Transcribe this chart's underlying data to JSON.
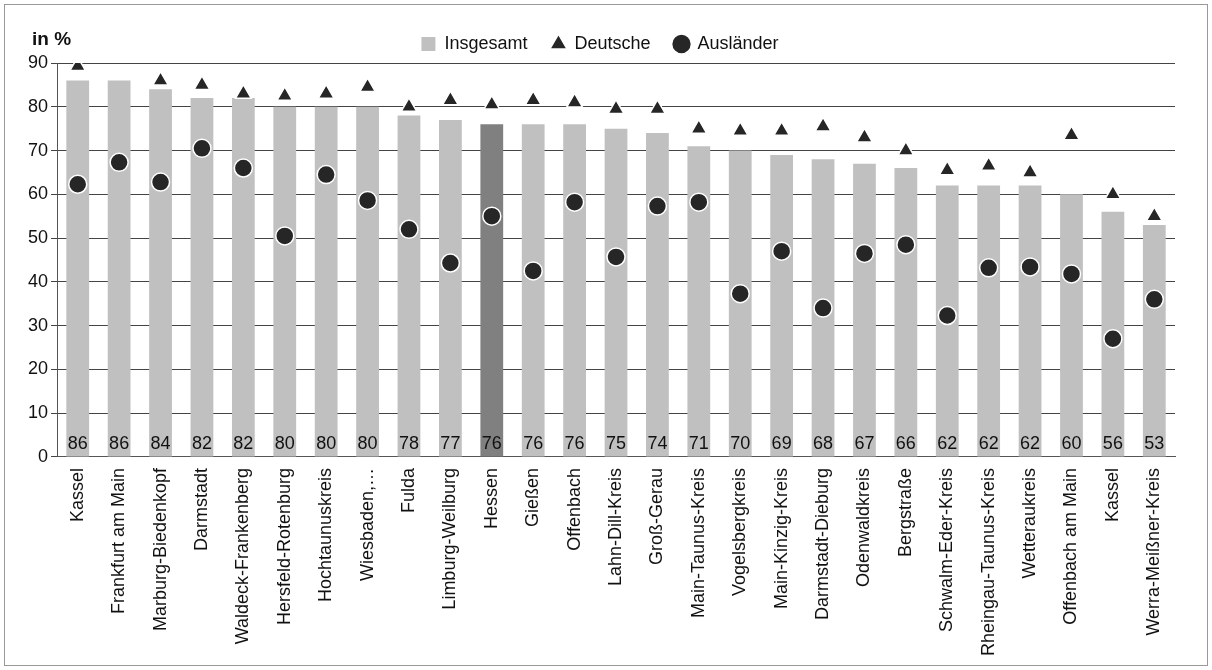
{
  "chart_data": {
    "type": "bar",
    "ylabel": "in %",
    "categories": [
      "Kassel",
      "Frankfurt am Main",
      "Marburg-Biedenkopf",
      "Darmstadt",
      "Waldeck-Frankenberg",
      "Hersfeld-Rotenburg",
      "Hochtaunuskreis",
      "Wiesbaden,…",
      "Fulda",
      "Limburg-Weilburg",
      "Hessen",
      "Gießen",
      "Offenbach",
      "Lahn-Dill-Kreis",
      "Groß-Gerau",
      "Main-Taunus-Kreis",
      "Vogelsbergkreis",
      "Main-Kinzig-Kreis",
      "Darmstadt-Dieburg",
      "Odenwaldkreis",
      "Bergstraße",
      "Schwalm-Eder-Kreis",
      "Rheingau-Taunus-Kreis",
      "Wetteraukreis",
      "Offenbach am Main",
      "Kassel",
      "Werra-Meißner-Kreis"
    ],
    "series": [
      {
        "name": "Insgesamt",
        "color": "#c0c0c0",
        "colors": [
          "#c0c0c0",
          "#c0c0c0",
          "#c0c0c0",
          "#c0c0c0",
          "#c0c0c0",
          "#c0c0c0",
          "#c0c0c0",
          "#c0c0c0",
          "#c0c0c0",
          "#c0c0c0",
          "#808080",
          "#c0c0c0",
          "#c0c0c0",
          "#c0c0c0",
          "#c0c0c0",
          "#c0c0c0",
          "#c0c0c0",
          "#c0c0c0",
          "#c0c0c0",
          "#c0c0c0",
          "#c0c0c0",
          "#c0c0c0",
          "#c0c0c0",
          "#c0c0c0",
          "#c0c0c0",
          "#c0c0c0",
          "#c0c0c0"
        ],
        "values": [
          86,
          86,
          84,
          82,
          82,
          80,
          80,
          80,
          78,
          77,
          76,
          76,
          76,
          75,
          74,
          71,
          70,
          69,
          68,
          67,
          66,
          62,
          62,
          62,
          60,
          56,
          53
        ],
        "value_labels": [
          "86",
          "86",
          "84",
          "82",
          "82",
          "80",
          "80",
          "80",
          "78",
          "77",
          "76",
          "76",
          "76",
          "75",
          "74",
          "71",
          "70",
          "69",
          "68",
          "67",
          "66",
          "62",
          "62",
          "62",
          "60",
          "56",
          "53"
        ]
      },
      {
        "name": "Deutsche",
        "type": "scatter",
        "marker": "triangle",
        "color": "#262626",
        "values": [
          89.3,
          null,
          86,
          85,
          83,
          82.5,
          83,
          84.5,
          80,
          81.5,
          80.5,
          81.5,
          81,
          79.5,
          79.5,
          75,
          74.5,
          74.5,
          75.5,
          73,
          70,
          65.5,
          66.5,
          65,
          73.5,
          60,
          55
        ]
      },
      {
        "name": "Ausländer",
        "type": "scatter",
        "marker": "circle",
        "color": "#262626",
        "values": [
          62.3,
          67.3,
          62.8,
          70.5,
          66,
          50.5,
          64.5,
          58.6,
          52,
          44.3,
          55,
          42.5,
          58.2,
          45.7,
          57.3,
          58.2,
          37.3,
          47,
          34,
          46.5,
          48.5,
          32.3,
          43.2,
          43.4,
          41.8,
          27,
          36
        ]
      }
    ],
    "ylim": [
      0,
      90
    ],
    "yticks": [
      0,
      10,
      20,
      30,
      40,
      50,
      60,
      70,
      80,
      90
    ],
    "grid": "y",
    "legend": "top"
  }
}
